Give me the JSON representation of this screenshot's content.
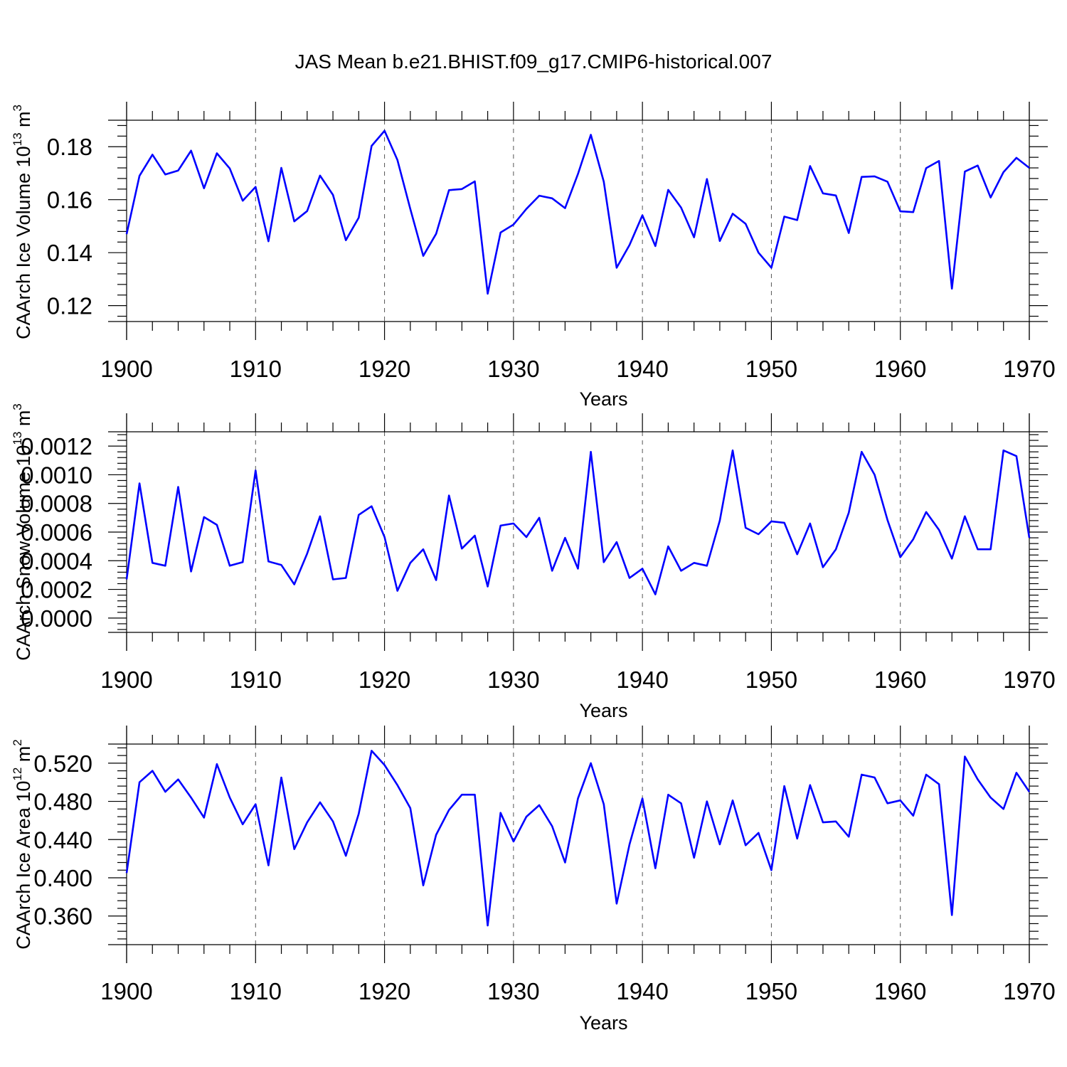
{
  "title": "JAS Mean b.e21.BHIST.f09_g17.CMIP6-historical.007",
  "colors": {
    "series": "#0000ff",
    "axis": "#000000",
    "grid": "#555555",
    "background": "#ffffff"
  },
  "chart_data": [
    {
      "type": "line",
      "name": "ice-volume",
      "ylabel": {
        "main": "CAArch Ice Volume 10",
        "sup": "13",
        "unit": " m",
        "unit_sup": "3"
      },
      "xlabel": "Years",
      "xlim": [
        1900,
        1970
      ],
      "ylim": [
        0.114,
        0.19
      ],
      "yticks": [
        0.12,
        0.14,
        0.16,
        0.18
      ],
      "ytick_labels": [
        "0.12",
        "0.14",
        "0.16",
        "0.18"
      ],
      "xticks": [
        1900,
        1910,
        1920,
        1930,
        1940,
        1950,
        1960,
        1970
      ],
      "xtick_labels": [
        "1900",
        "1910",
        "1920",
        "1930",
        "1940",
        "1950",
        "1960",
        "1970"
      ],
      "grid": "vertical dashed at major x ticks",
      "x": [
        1900,
        1901,
        1902,
        1903,
        1904,
        1905,
        1906,
        1907,
        1908,
        1909,
        1910,
        1911,
        1912,
        1913,
        1914,
        1915,
        1916,
        1917,
        1918,
        1919,
        1920,
        1921,
        1922,
        1923,
        1924,
        1925,
        1926,
        1927,
        1928,
        1929,
        1930,
        1931,
        1932,
        1933,
        1934,
        1935,
        1936,
        1937,
        1938,
        1939,
        1940,
        1941,
        1942,
        1943,
        1944,
        1945,
        1946,
        1947,
        1948,
        1949,
        1950,
        1951,
        1952,
        1953,
        1954,
        1955,
        1956,
        1957,
        1958,
        1959,
        1960,
        1961,
        1962,
        1963,
        1964,
        1965,
        1966,
        1967,
        1968,
        1969,
        1970
      ],
      "values": [
        0.147,
        0.169,
        0.177,
        0.1695,
        0.171,
        0.1785,
        0.1643,
        0.1775,
        0.1718,
        0.1596,
        0.1648,
        0.1443,
        0.172,
        0.1518,
        0.1557,
        0.1691,
        0.1618,
        0.1447,
        0.1532,
        0.1803,
        0.186,
        0.175,
        0.1565,
        0.1388,
        0.1471,
        0.1636,
        0.164,
        0.1669,
        0.1245,
        0.1476,
        0.1506,
        0.1565,
        0.1615,
        0.1605,
        0.1568,
        0.1697,
        0.1845,
        0.1668,
        0.1343,
        0.1429,
        0.1541,
        0.1425,
        0.1637,
        0.157,
        0.1458,
        0.1678,
        0.1444,
        0.1547,
        0.1509,
        0.14,
        0.1343,
        0.1536,
        0.1523,
        0.1727,
        0.1624,
        0.1616,
        0.1474,
        0.1686,
        0.1688,
        0.1668,
        0.1556,
        0.1553,
        0.1719,
        0.1746,
        0.1264,
        0.1706,
        0.1729,
        0.1608,
        0.1704,
        0.1758,
        0.172
      ]
    },
    {
      "type": "line",
      "name": "snow-volume",
      "ylabel": {
        "main": "CAArch Snow Volume 10",
        "sup": "13",
        "unit": " m",
        "unit_sup": "3"
      },
      "xlabel": "Years",
      "xlim": [
        1900,
        1970
      ],
      "ylim": [
        -0.0001,
        0.0013
      ],
      "yticks": [
        0.0,
        0.0002,
        0.0004,
        0.0006,
        0.0008,
        0.001,
        0.0012
      ],
      "ytick_labels": [
        "0.0000",
        "0.0002",
        "0.0004",
        "0.0006",
        "0.0008",
        "0.0010",
        "0.0012"
      ],
      "xticks": [
        1900,
        1910,
        1920,
        1930,
        1940,
        1950,
        1960,
        1970
      ],
      "xtick_labels": [
        "1900",
        "1910",
        "1920",
        "1930",
        "1940",
        "1950",
        "1960",
        "1970"
      ],
      "grid": "vertical dashed at major x ticks",
      "x": [
        1900,
        1901,
        1902,
        1903,
        1904,
        1905,
        1906,
        1907,
        1908,
        1909,
        1910,
        1911,
        1912,
        1913,
        1914,
        1915,
        1916,
        1917,
        1918,
        1919,
        1920,
        1921,
        1922,
        1923,
        1924,
        1925,
        1926,
        1927,
        1928,
        1929,
        1930,
        1931,
        1932,
        1933,
        1934,
        1935,
        1936,
        1937,
        1938,
        1939,
        1940,
        1941,
        1942,
        1943,
        1944,
        1945,
        1946,
        1947,
        1948,
        1949,
        1950,
        1951,
        1952,
        1953,
        1954,
        1955,
        1956,
        1957,
        1958,
        1959,
        1960,
        1961,
        1962,
        1963,
        1964,
        1965,
        1966,
        1967,
        1968,
        1969,
        1970
      ],
      "values": [
        0.00027,
        0.00094,
        0.000385,
        0.000365,
        0.000915,
        0.000325,
        0.000705,
        0.00065,
        0.000365,
        0.00039,
        0.00103,
        0.000395,
        0.00037,
        0.000235,
        0.00045,
        0.00071,
        0.00027,
        0.00028,
        0.00072,
        0.00078,
        0.000565,
        0.00019,
        0.000385,
        0.00048,
        0.000265,
        0.000855,
        0.000485,
        0.000575,
        0.00022,
        0.000645,
        0.00066,
        0.000565,
        0.0007,
        0.00033,
        0.00056,
        0.000345,
        0.00116,
        0.00039,
        0.00053,
        0.00028,
        0.000345,
        0.000165,
        0.0005,
        0.00033,
        0.000385,
        0.000365,
        0.00068,
        0.00117,
        0.00063,
        0.000585,
        0.000675,
        0.000665,
        0.000445,
        0.00066,
        0.000355,
        0.00048,
        0.000735,
        0.00116,
        0.001,
        0.000685,
        0.000425,
        0.00055,
        0.00074,
        0.000615,
        0.000415,
        0.00071,
        0.00048,
        0.00048,
        0.00117,
        0.00113,
        0.00056
      ]
    },
    {
      "type": "line",
      "name": "ice-area",
      "ylabel": {
        "main": "CAArch Ice Area 10",
        "sup": "12",
        "unit": " m",
        "unit_sup": "2"
      },
      "xlabel": "Years",
      "xlim": [
        1900,
        1970
      ],
      "ylim": [
        0.33,
        0.54
      ],
      "yticks": [
        0.36,
        0.4,
        0.44,
        0.48,
        0.52
      ],
      "ytick_labels": [
        "0.360",
        "0.400",
        "0.440",
        "0.480",
        "0.520"
      ],
      "xticks": [
        1900,
        1910,
        1920,
        1930,
        1940,
        1950,
        1960,
        1970
      ],
      "xtick_labels": [
        "1900",
        "1910",
        "1920",
        "1930",
        "1940",
        "1950",
        "1960",
        "1970"
      ],
      "grid": "vertical dashed at major x ticks",
      "x": [
        1900,
        1901,
        1902,
        1903,
        1904,
        1905,
        1906,
        1907,
        1908,
        1909,
        1910,
        1911,
        1912,
        1913,
        1914,
        1915,
        1916,
        1917,
        1918,
        1919,
        1920,
        1921,
        1922,
        1923,
        1924,
        1925,
        1926,
        1927,
        1928,
        1929,
        1930,
        1931,
        1932,
        1933,
        1934,
        1935,
        1936,
        1937,
        1938,
        1939,
        1940,
        1941,
        1942,
        1943,
        1944,
        1945,
        1946,
        1947,
        1948,
        1949,
        1950,
        1951,
        1952,
        1953,
        1954,
        1955,
        1956,
        1957,
        1958,
        1959,
        1960,
        1961,
        1962,
        1963,
        1964,
        1965,
        1966,
        1967,
        1968,
        1969,
        1970
      ],
      "values": [
        0.405,
        0.5,
        0.512,
        0.49,
        0.503,
        0.484,
        0.463,
        0.519,
        0.484,
        0.456,
        0.477,
        0.413,
        0.505,
        0.43,
        0.458,
        0.479,
        0.459,
        0.423,
        0.467,
        0.533,
        0.518,
        0.497,
        0.473,
        0.392,
        0.445,
        0.471,
        0.487,
        0.487,
        0.35,
        0.468,
        0.438,
        0.464,
        0.476,
        0.454,
        0.416,
        0.483,
        0.52,
        0.477,
        0.373,
        0.435,
        0.483,
        0.41,
        0.487,
        0.478,
        0.421,
        0.48,
        0.435,
        0.481,
        0.434,
        0.447,
        0.408,
        0.496,
        0.441,
        0.497,
        0.458,
        0.459,
        0.443,
        0.508,
        0.505,
        0.478,
        0.481,
        0.465,
        0.508,
        0.498,
        0.361,
        0.527,
        0.503,
        0.484,
        0.472,
        0.51,
        0.49
      ]
    }
  ]
}
